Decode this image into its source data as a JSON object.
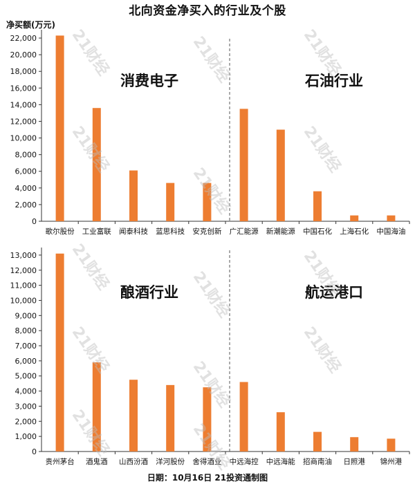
{
  "title": "北向资金净买入的行业及个股",
  "unit_label": "净买额(万元)",
  "footer": "日期：10月16日  21投资通制图",
  "watermark": "21财经",
  "colors": {
    "bar": "#ED7D31",
    "axis": "#333333",
    "divider": "#555555"
  },
  "chart_data": [
    {
      "type": "bar",
      "ylim": [
        0,
        23000
      ],
      "yticks": [
        0,
        2000,
        4000,
        6000,
        8000,
        10000,
        12000,
        14000,
        16000,
        18000,
        20000,
        22000
      ],
      "groups": [
        {
          "label": "消费电子",
          "categories": [
            "歌尔股份",
            "工业富联",
            "闻泰科技",
            "蓝思科技",
            "安克创新"
          ],
          "values": [
            22300,
            13600,
            6100,
            4600,
            4600
          ]
        },
        {
          "label": "石油行业",
          "categories": [
            "广汇能源",
            "新潮能源",
            "中国石化",
            "上海石化",
            "中国海油"
          ],
          "values": [
            13500,
            11000,
            3600,
            700,
            700
          ]
        }
      ]
    },
    {
      "type": "bar",
      "ylim": [
        0,
        13500
      ],
      "yticks": [
        0,
        1000,
        2000,
        3000,
        4000,
        5000,
        6000,
        7000,
        8000,
        9000,
        10000,
        11000,
        12000,
        13000
      ],
      "groups": [
        {
          "label": "酿酒行业",
          "categories": [
            "贵州茅台",
            "酒鬼酒",
            "山西汾酒",
            "洋河股份",
            "舍得酒业"
          ],
          "values": [
            13100,
            5900,
            4750,
            4400,
            4250
          ]
        },
        {
          "label": "航运港口",
          "categories": [
            "中远海控",
            "中远海能",
            "招商南油",
            "日照港",
            "锦州港"
          ],
          "values": [
            4600,
            2600,
            1300,
            950,
            850
          ]
        }
      ]
    }
  ]
}
